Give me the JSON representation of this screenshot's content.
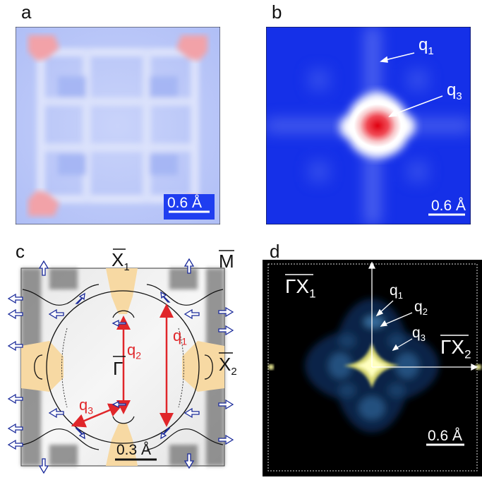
{
  "panels": {
    "a": {
      "label": "a",
      "scale_bar": "0.6 Å"
    },
    "b": {
      "label": "b",
      "scale_bar": "0.6 Å",
      "q1": "q",
      "q1_sub": "1",
      "q3": "q",
      "q3_sub": "3"
    },
    "c": {
      "label": "c",
      "scale_bar": "0.3 Å",
      "x1": "X",
      "x1_sub": "1",
      "m": "M",
      "x2": "X",
      "x2_sub": "2",
      "gamma": "Γ",
      "q1": "q",
      "q1_sub": "1",
      "q2": "q",
      "q2_sub": "2",
      "q3": "q",
      "q3_sub": "3"
    },
    "d": {
      "label": "d",
      "scale_bar": "0.6 Å",
      "gx1": "ΓX",
      "gx1_sub": "1",
      "gx2": "ΓX",
      "gx2_sub": "2",
      "q1": "q",
      "q1_sub": "1",
      "q2": "q",
      "q2_sub": "2",
      "q3": "q",
      "q3_sub": "3"
    }
  },
  "colors": {
    "blue": "#1f3ef0",
    "red": "#e0262a",
    "orange_patch": "#f7d9a3",
    "dark": "#000000"
  }
}
